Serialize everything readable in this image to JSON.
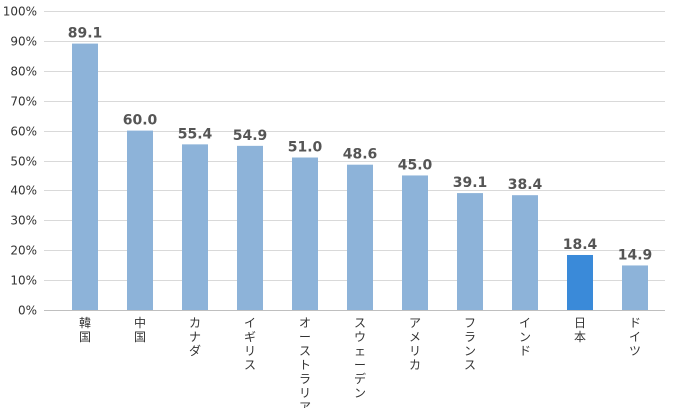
{
  "chart_data": {
    "type": "bar",
    "title": "",
    "xlabel": "",
    "ylabel": "",
    "categories": [
      "韓国",
      "中国",
      "カナダ",
      "イギリス",
      "オーストラリア",
      "スウェーデン",
      "アメリカ",
      "フランス",
      "インド",
      "日本",
      "ドイツ"
    ],
    "values": [
      89.1,
      60.0,
      55.4,
      54.9,
      51.0,
      48.6,
      45.0,
      39.1,
      38.4,
      18.4,
      14.9
    ],
    "value_labels": [
      "89.1",
      "60.0",
      "55.4",
      "54.9",
      "51.0",
      "48.6",
      "45.0",
      "39.1",
      "38.4",
      "18.4",
      "14.9"
    ],
    "ylim": [
      0,
      100
    ],
    "yticks": [
      0,
      10,
      20,
      30,
      40,
      50,
      60,
      70,
      80,
      90,
      100
    ],
    "ytick_labels": [
      "0%",
      "10%",
      "20%",
      "30%",
      "40%",
      "50%",
      "60%",
      "70%",
      "80%",
      "90%",
      "100%"
    ],
    "grid": true,
    "legend": "none",
    "colors": {
      "default_bar": "#8db3d9",
      "highlight_bar": "#3a8ad9",
      "gridline": "#d9d9d9",
      "label_text": "#555555"
    },
    "highlight_category": "日本"
  }
}
